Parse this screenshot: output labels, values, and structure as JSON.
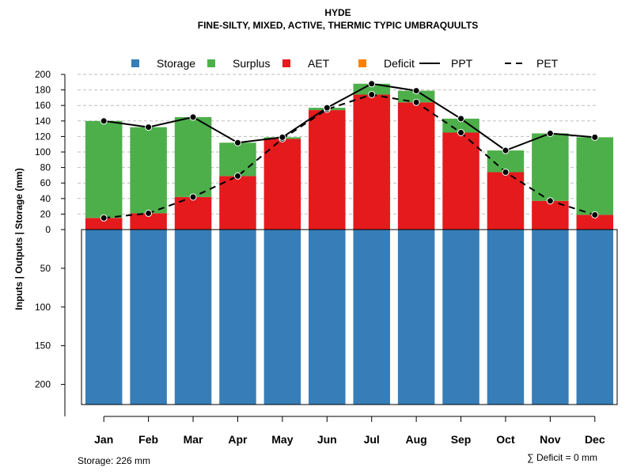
{
  "chart_data": {
    "type": "bar",
    "title": "HYDE",
    "subtitle": "FINE-SILTY, MIXED, ACTIVE, THERMIC TYPIC UMBRAQUULTS",
    "ylabel": "Inputs | Outputs | Storage    (mm)",
    "categories": [
      "Jan",
      "Feb",
      "Mar",
      "Apr",
      "May",
      "Jun",
      "Jul",
      "Aug",
      "Sep",
      "Oct",
      "Nov",
      "Dec"
    ],
    "upper_ticks": [
      0,
      20,
      40,
      60,
      80,
      100,
      120,
      140,
      160,
      180,
      200
    ],
    "lower_ticks": [
      50,
      100,
      150,
      200
    ],
    "upper_ylim": [
      0,
      200
    ],
    "lower_ylim": [
      0,
      226
    ],
    "grid": true,
    "legend": {
      "position": "top",
      "entries": [
        {
          "label": "Storage",
          "kind": "box",
          "color": "#377EB8"
        },
        {
          "label": "Surplus",
          "kind": "box",
          "color": "#4DAF4A"
        },
        {
          "label": "AET",
          "kind": "box",
          "color": "#E41A1C"
        },
        {
          "label": "Deficit",
          "kind": "box",
          "color": "#FF7F00"
        },
        {
          "label": "PPT",
          "kind": "line",
          "color": "#000000"
        },
        {
          "label": "PET",
          "kind": "dashed",
          "color": "#000000"
        }
      ]
    },
    "series": [
      {
        "name": "Storage",
        "color": "#377EB8",
        "values": [
          226,
          226,
          226,
          226,
          226,
          226,
          226,
          226,
          226,
          226,
          226,
          226
        ]
      },
      {
        "name": "Surplus",
        "color": "#4DAF4A",
        "values": [
          125,
          111,
          103,
          43,
          2,
          3,
          14,
          15,
          18,
          28,
          87,
          100
        ]
      },
      {
        "name": "AET",
        "color": "#E41A1C",
        "values": [
          15,
          21,
          42,
          69,
          117,
          154,
          174,
          164,
          125,
          74,
          37,
          19
        ]
      },
      {
        "name": "Deficit",
        "color": "#FF7F00",
        "values": [
          0,
          0,
          0,
          0,
          0,
          0,
          0,
          0,
          0,
          0,
          0,
          0
        ]
      },
      {
        "name": "PPT",
        "color": "#000000",
        "values": [
          140,
          132,
          145,
          112,
          119,
          157,
          188,
          179,
          143,
          102,
          124,
          119
        ]
      },
      {
        "name": "PET",
        "color": "#000000",
        "values": [
          15,
          21,
          42,
          69,
          117,
          155,
          174,
          164,
          125,
          74,
          37,
          19
        ]
      }
    ]
  },
  "footer": {
    "storage_text": "Storage: 226 mm",
    "deficit_text": "∑ Deficit = 0 mm"
  },
  "colors": {
    "storage": "#377EB8",
    "surplus": "#4DAF4A",
    "aet": "#E41A1C",
    "deficit": "#FF7F00",
    "grid": "#BEBEBE"
  }
}
